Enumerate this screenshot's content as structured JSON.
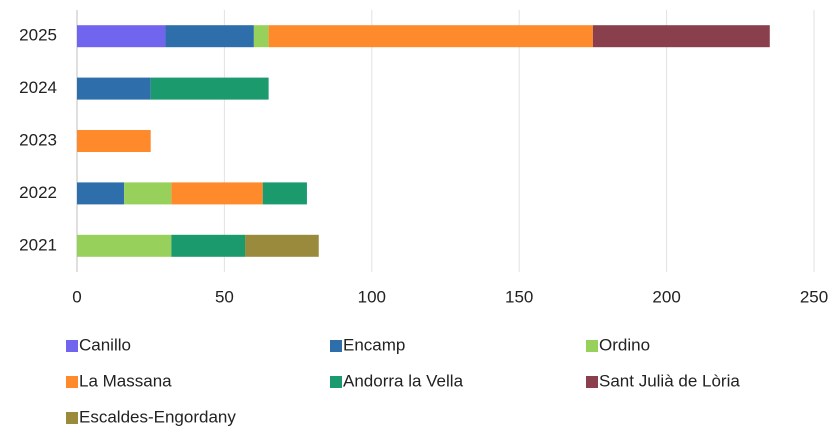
{
  "chart_data": {
    "type": "stacked-bar-horizontal",
    "categories": [
      "2021",
      "2022",
      "2023",
      "2024",
      "2025"
    ],
    "series": [
      {
        "name": "Canillo",
        "color": "#7165f0",
        "values": [
          null,
          null,
          null,
          null,
          30
        ]
      },
      {
        "name": "Encamp",
        "color": "#2e6eab",
        "values": [
          null,
          16,
          null,
          25,
          30
        ]
      },
      {
        "name": "Ordino",
        "color": "#97d05a",
        "values": [
          32,
          16,
          null,
          null,
          5
        ]
      },
      {
        "name": "La Massana",
        "color": "#ff8a2b",
        "values": [
          null,
          31,
          25,
          null,
          110
        ]
      },
      {
        "name": "Andorra la Vella",
        "color": "#1b9a6e",
        "values": [
          25,
          15,
          null,
          40,
          null
        ]
      },
      {
        "name": "Sant Julià de Lòria",
        "color": "#8a3f4d",
        "values": [
          null,
          null,
          null,
          null,
          60
        ]
      },
      {
        "name": "Escaldes-Engordany",
        "color": "#9a8a3b",
        "values": [
          25,
          null,
          null,
          null,
          null
        ]
      }
    ],
    "xlim": [
      0,
      250
    ],
    "xticks": [
      0,
      50,
      100,
      150,
      200,
      250
    ],
    "grid": true,
    "legend": "bottom"
  }
}
